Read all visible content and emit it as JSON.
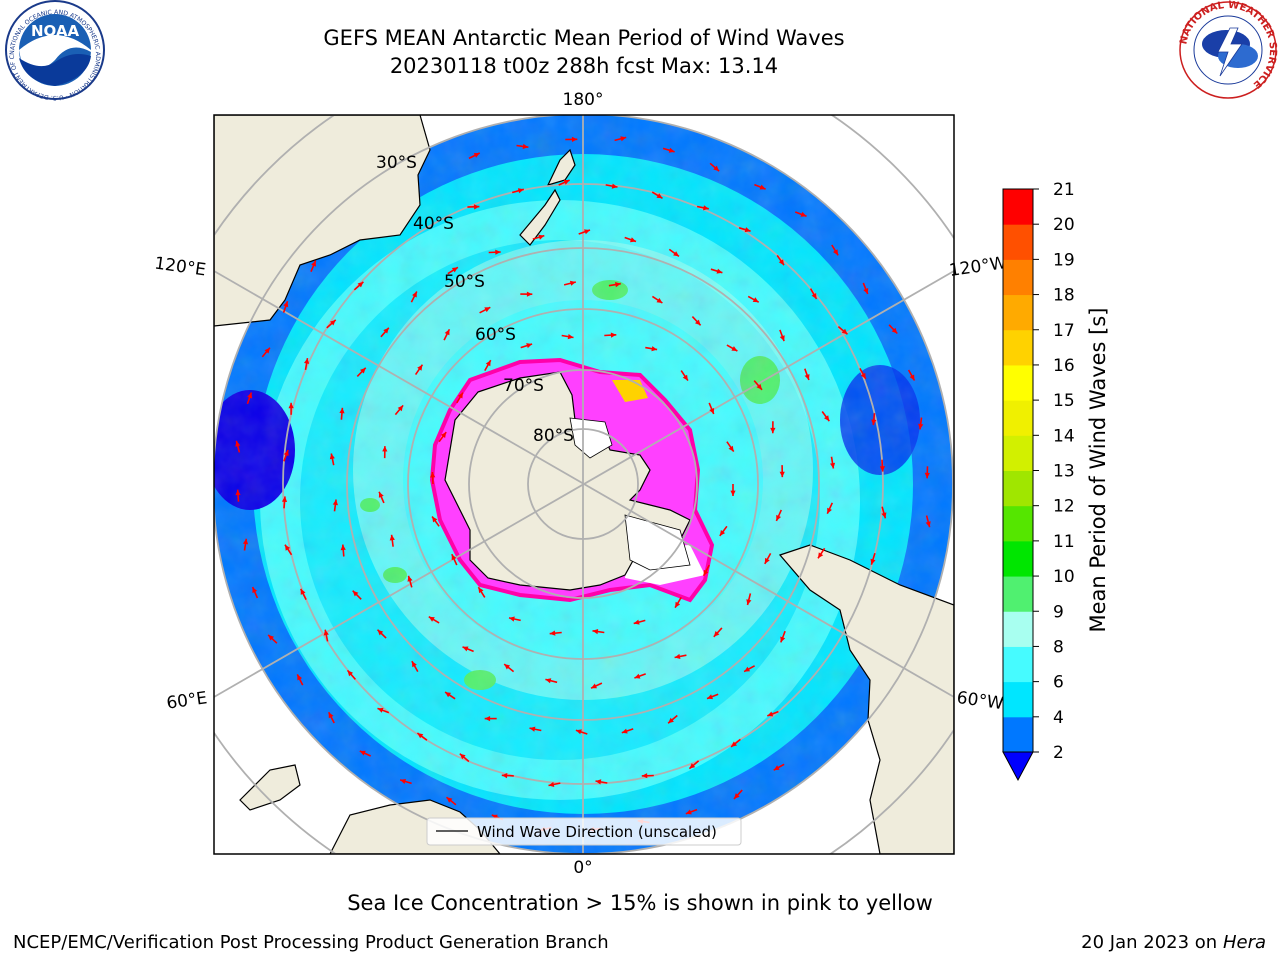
{
  "header": {
    "title_line1": "GEFS MEAN Antarctic Mean Period of Wind Waves",
    "title_line2": "20230118 t00z 288h fcst   Max: 13.14"
  },
  "map": {
    "projection": "south polar stereographic",
    "longitude_labels": [
      "180°",
      "120°E",
      "120°W",
      "60°E",
      "60°W",
      "0°"
    ],
    "latitude_labels": [
      "30°S",
      "40°S",
      "50°S",
      "60°S",
      "70°S",
      "80°S"
    ],
    "legend_label": "Wind Wave Direction (unscaled)",
    "field_colors": {
      "open_ocean_deep_blue": "#0a00e8",
      "period_2_4": "#0078ff",
      "period_4_6": "#00e6ff",
      "period_6_8": "#46fbff",
      "period_8_9": "#a8fff0",
      "period_9_10": "#50f070",
      "land": "#efecdc",
      "sea_ice": "#ff40ff",
      "arrows": "#ff0000"
    }
  },
  "colorbar": {
    "label": "Mean Period of Wind Waves [s]",
    "ticks": [
      "2",
      "4",
      "6",
      "8",
      "9",
      "10",
      "11",
      "12",
      "13",
      "14",
      "15",
      "16",
      "17",
      "18",
      "19",
      "20",
      "21"
    ],
    "colors": [
      "#0078ff",
      "#00e6ff",
      "#46fbff",
      "#a8fff0",
      "#50f070",
      "#00e600",
      "#55e600",
      "#a0e600",
      "#d2f000",
      "#f0f000",
      "#ffff00",
      "#ffd200",
      "#ffaa00",
      "#ff8000",
      "#ff5000",
      "#ff0000"
    ],
    "under_color": "#0000ff"
  },
  "footer": {
    "caption": "Sea Ice Concentration > 15% is shown in pink to yellow",
    "left": "NCEP/EMC/Verification Post Processing Product Generation Branch",
    "date": "20 Jan 2023 on",
    "machine": "Hera"
  },
  "logos": {
    "noaa": "NOAA",
    "noaa_ring_text": "NATIONAL OCEANIC AND ATMOSPHERIC ADMINISTRATION · U.S. DEPARTMENT OF COMMERCE",
    "nws_ring_text": "NATIONAL WEATHER SERVICE"
  }
}
